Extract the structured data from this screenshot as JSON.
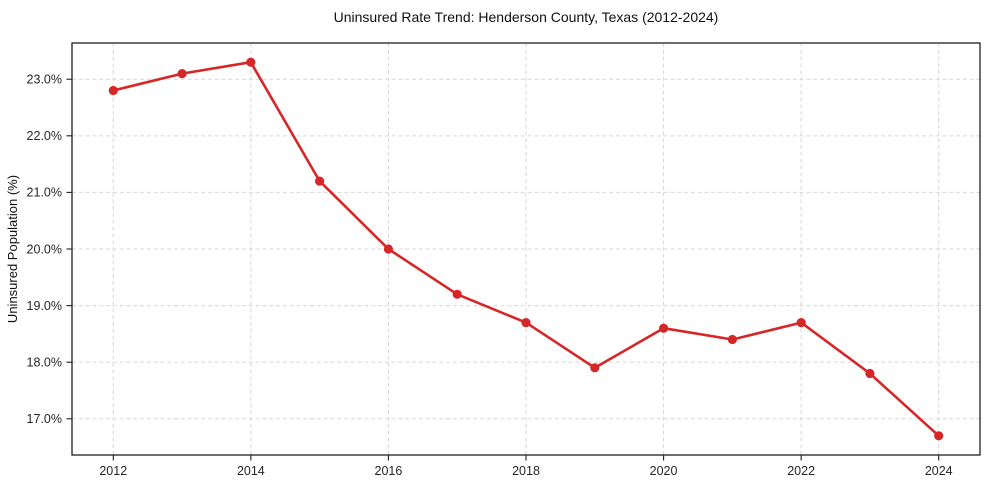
{
  "page": {
    "background_color": "#ffffff"
  },
  "chart_data": {
    "type": "line",
    "title": "Uninsured Rate Trend: Henderson County, Texas (2012-2024)",
    "xlabel": "",
    "ylabel": "Uninsured Population (%)",
    "x": [
      2012,
      2013,
      2014,
      2015,
      2016,
      2017,
      2018,
      2019,
      2020,
      2021,
      2022,
      2023,
      2024
    ],
    "values": [
      22.8,
      23.1,
      23.3,
      21.2,
      20.0,
      19.2,
      18.7,
      17.9,
      18.6,
      18.4,
      18.7,
      17.8,
      16.7
    ],
    "xlim": [
      2011.4,
      2024.6
    ],
    "ylim": [
      16.36,
      23.64
    ],
    "xticks": [
      {
        "v": 2012,
        "label": "2012"
      },
      {
        "v": 2014,
        "label": "2014"
      },
      {
        "v": 2016,
        "label": "2016"
      },
      {
        "v": 2018,
        "label": "2018"
      },
      {
        "v": 2020,
        "label": "2020"
      },
      {
        "v": 2022,
        "label": "2022"
      },
      {
        "v": 2024,
        "label": "2024"
      }
    ],
    "yticks": [
      {
        "v": 17,
        "label": "17.0%"
      },
      {
        "v": 18,
        "label": "18.0%"
      },
      {
        "v": 19,
        "label": "19.0%"
      },
      {
        "v": 20,
        "label": "20.0%"
      },
      {
        "v": 21,
        "label": "21.0%"
      },
      {
        "v": 22,
        "label": "22.0%"
      },
      {
        "v": 23,
        "label": "23.0%"
      }
    ],
    "grid": true,
    "grid_style": "dashed",
    "grid_color": "#d7d7d7",
    "spine_color": "#1f1f1f",
    "line_color": "#d62728",
    "marker": "circle",
    "legend_position": "none"
  }
}
